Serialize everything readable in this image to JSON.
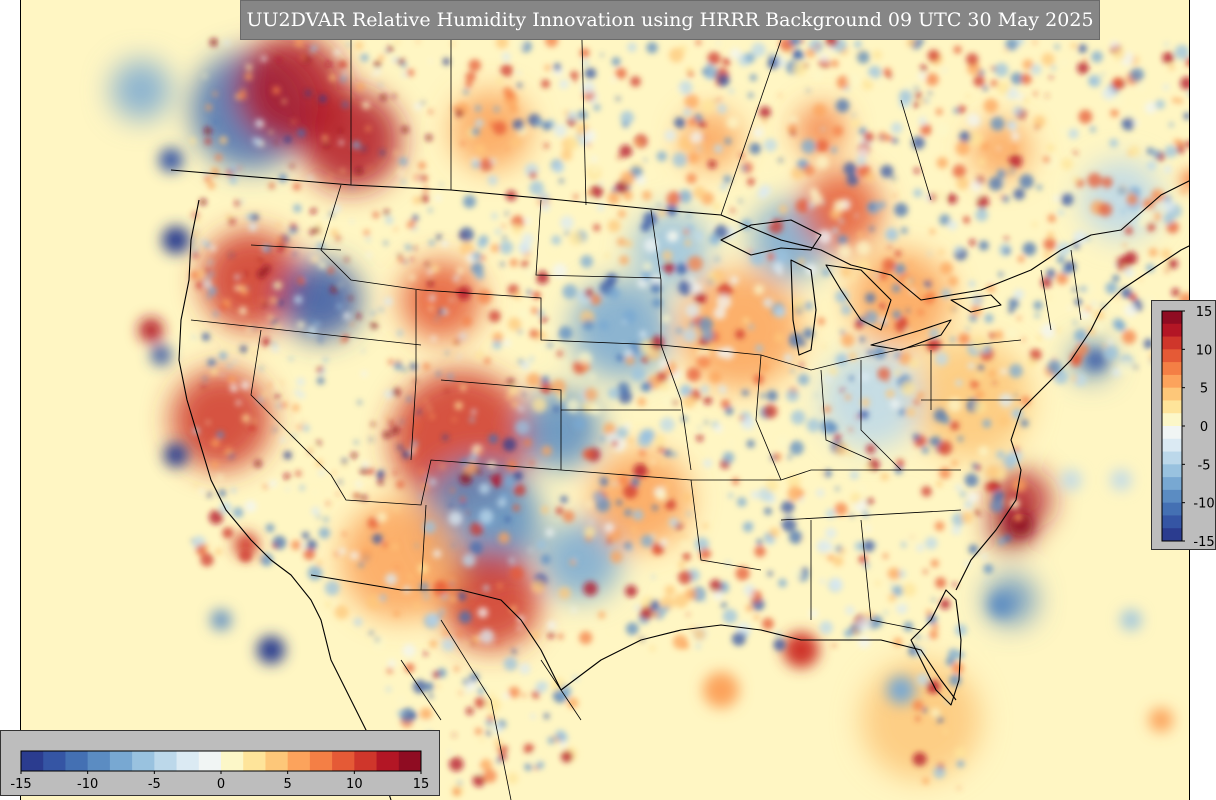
{
  "title": "UU2DVAR Relative Humidity Innovation using HRRR Background 09 UTC 30 May 2025",
  "colorbar": {
    "min": -15,
    "max": 15,
    "bottom_ticks": [
      "-15",
      "-10",
      "-5",
      "0",
      "5",
      "10",
      "15"
    ],
    "right_ticks": [
      "15",
      "10",
      "5",
      "0",
      "-5",
      "-10",
      "-15"
    ],
    "colors": [
      "#2b3c8f",
      "#3555a4",
      "#4470b3",
      "#5b8cc2",
      "#78a8d2",
      "#99c2df",
      "#bcd8ea",
      "#dbeaf3",
      "#f1f5f4",
      "#fcf7c8",
      "#fee49a",
      "#fdc779",
      "#fca35c",
      "#f47f45",
      "#e55a36",
      "#cf362b",
      "#b31625",
      "#8f0c22"
    ]
  },
  "palette": {
    "background": "#fff6c3",
    "ocean": "#fff9c8",
    "blue_strong": "#2f4fa0",
    "blue_light": "#a9c9e4",
    "red_strong": "#b7182a",
    "orange": "#f08c52",
    "borders": "#000000",
    "title_bg": "#868686"
  }
}
